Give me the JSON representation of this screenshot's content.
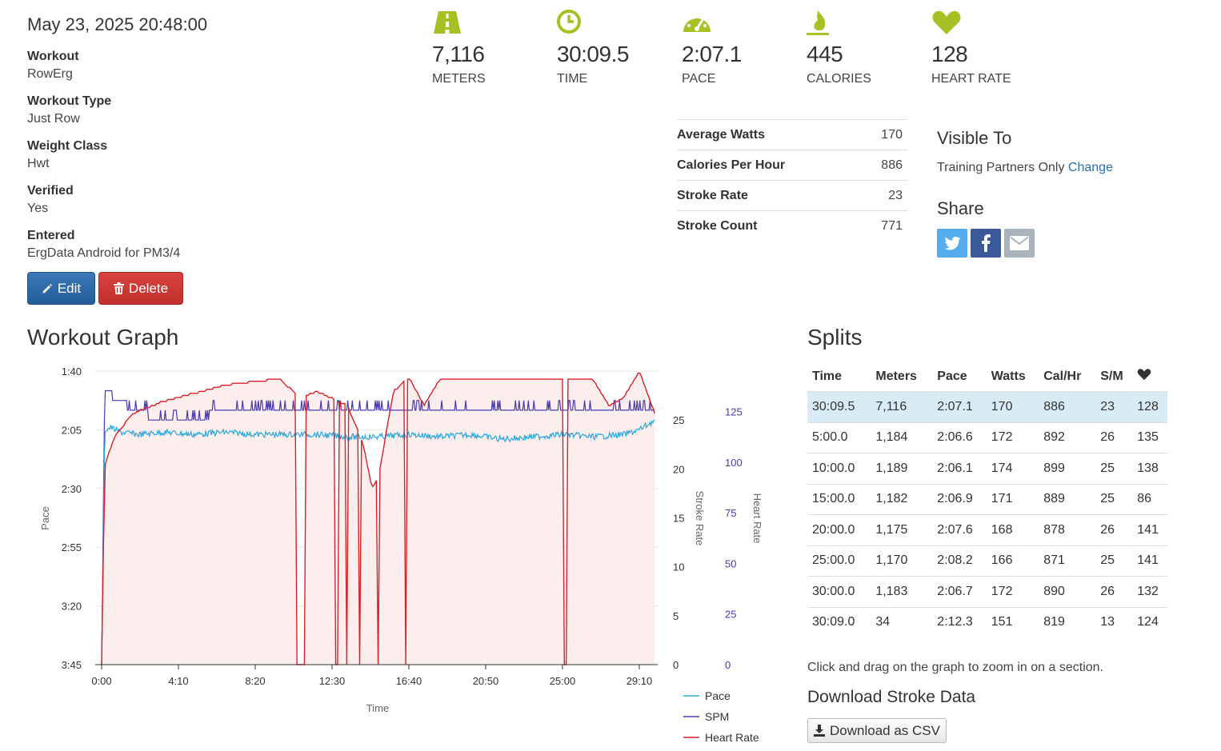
{
  "workout": {
    "datetime": "May 23, 2025 20:48:00",
    "details": [
      {
        "label": "Workout",
        "value": "RowErg"
      },
      {
        "label": "Workout Type",
        "value": "Just Row"
      },
      {
        "label": "Weight Class",
        "value": "Hwt"
      },
      {
        "label": "Verified",
        "value": "Yes"
      },
      {
        "label": "Entered",
        "value": "ErgData Android for PM3/4"
      }
    ],
    "edit_label": "Edit",
    "delete_label": "Delete"
  },
  "stats": [
    {
      "icon": "road-icon",
      "value": "7,116",
      "label": "METERS"
    },
    {
      "icon": "clock-icon",
      "value": "30:09.5",
      "label": "TIME"
    },
    {
      "icon": "speedometer-icon",
      "value": "2:07.1",
      "label": "PACE"
    },
    {
      "icon": "flame-icon",
      "value": "445",
      "label": "CALORIES"
    },
    {
      "icon": "heart-icon",
      "value": "128",
      "label": "HEART RATE"
    }
  ],
  "summary": [
    {
      "label": "Average Watts",
      "value": "170"
    },
    {
      "label": "Calories Per Hour",
      "value": "886"
    },
    {
      "label": "Stroke Rate",
      "value": "23"
    },
    {
      "label": "Stroke Count",
      "value": "771"
    }
  ],
  "visibility": {
    "heading": "Visible To",
    "value": "Training Partners Only",
    "change_label": "Change"
  },
  "share": {
    "heading": "Share",
    "buttons": [
      "twitter-icon",
      "facebook-icon",
      "email-icon"
    ]
  },
  "colors": {
    "accent": "#a8c023",
    "pace": "#29a8e0",
    "spm": "#4a3ab0",
    "heart": "#d9202a",
    "twitter": "#55acee",
    "facebook": "#3b5998",
    "email": "#aab2bd"
  },
  "graph": {
    "heading": "Workout Graph",
    "legend": [
      "Pace",
      "SPM",
      "Heart Rate"
    ]
  },
  "chart_data": {
    "type": "line",
    "xlabel": "Time",
    "x_ticks": [
      "0:00",
      "4:10",
      "8:20",
      "12:30",
      "16:40",
      "20:50",
      "25:00",
      "29:10"
    ],
    "xlim_seconds": [
      0,
      1810
    ],
    "y_left": {
      "label": "Pace",
      "ticks": [
        "1:40",
        "2:05",
        "2:30",
        "2:55",
        "3:20",
        "3:45"
      ],
      "range_seconds": [
        100,
        225
      ]
    },
    "y_right_1": {
      "label": "Stroke Rate",
      "ticks": [
        "0",
        "5",
        "10",
        "15",
        "20",
        "25"
      ],
      "range": [
        0,
        30
      ]
    },
    "y_right_2": {
      "label": "Heart Rate",
      "ticks": [
        "0",
        "25",
        "50",
        "75",
        "100",
        "125"
      ],
      "range": [
        0,
        145
      ]
    },
    "series": [
      {
        "name": "Pace",
        "unit": "seconds/500m",
        "x": [
          0,
          10,
          30,
          60,
          120,
          200,
          300,
          400,
          500,
          600,
          700,
          800,
          900,
          1000,
          1100,
          1200,
          1300,
          1400,
          1500,
          1600,
          1700,
          1750,
          1800
        ],
        "values": [
          225,
          125,
          124,
          126,
          127,
          126,
          127,
          126,
          127,
          127,
          127,
          128,
          128,
          127,
          128,
          127,
          129,
          128,
          127,
          128,
          127,
          125,
          121
        ]
      },
      {
        "name": "SPM",
        "unit": "strokes/min",
        "x": [
          0,
          10,
          100,
          200,
          300,
          400,
          500,
          600,
          700,
          800,
          900,
          1000,
          1100,
          1200,
          1300,
          1400,
          1500,
          1600,
          1700,
          1800
        ],
        "values": [
          0,
          28,
          26,
          25,
          25,
          26,
          26,
          26,
          26,
          26,
          26,
          26,
          26,
          26,
          26,
          26,
          26,
          26,
          26,
          26
        ]
      },
      {
        "name": "Heart Rate",
        "unit": "bpm",
        "x": [
          0,
          10,
          40,
          100,
          200,
          300,
          400,
          500,
          580,
          600,
          650,
          700,
          800,
          850,
          880,
          900,
          950,
          1000,
          1050,
          1100,
          1200,
          1300,
          1400,
          1500,
          1600,
          1650,
          1700,
          1750,
          1800
        ],
        "values": [
          0,
          98,
          112,
          124,
          130,
          134,
          138,
          140,
          141,
          138,
          132,
          135,
          128,
          110,
          87,
          92,
          135,
          142,
          128,
          141,
          141,
          141,
          141,
          141,
          141,
          128,
          132,
          145,
          124
        ]
      }
    ]
  },
  "splits": {
    "heading": "Splits",
    "columns": [
      "Time",
      "Meters",
      "Pace",
      "Watts",
      "Cal/Hr",
      "S/M"
    ],
    "heart_column_icon": "heart-icon",
    "rows": [
      [
        "30:09.5",
        "7,116",
        "2:07.1",
        "170",
        "886",
        "23",
        "128"
      ],
      [
        "5:00.0",
        "1,184",
        "2:06.6",
        "172",
        "892",
        "26",
        "135"
      ],
      [
        "10:00.0",
        "1,189",
        "2:06.1",
        "174",
        "899",
        "25",
        "138"
      ],
      [
        "15:00.0",
        "1,182",
        "2:06.9",
        "171",
        "889",
        "25",
        "86"
      ],
      [
        "20:00.0",
        "1,175",
        "2:07.6",
        "168",
        "878",
        "26",
        "141"
      ],
      [
        "25:00.0",
        "1,170",
        "2:08.2",
        "166",
        "871",
        "25",
        "141"
      ],
      [
        "30:00.0",
        "1,183",
        "2:06.7",
        "172",
        "890",
        "26",
        "132"
      ],
      [
        "30:09.0",
        "34",
        "2:12.3",
        "151",
        "819",
        "13",
        "124"
      ]
    ],
    "zoom_hint": "Click and drag on the graph to zoom in on a section."
  },
  "download": {
    "heading": "Download Stroke Data",
    "button_label": "Download as CSV"
  }
}
